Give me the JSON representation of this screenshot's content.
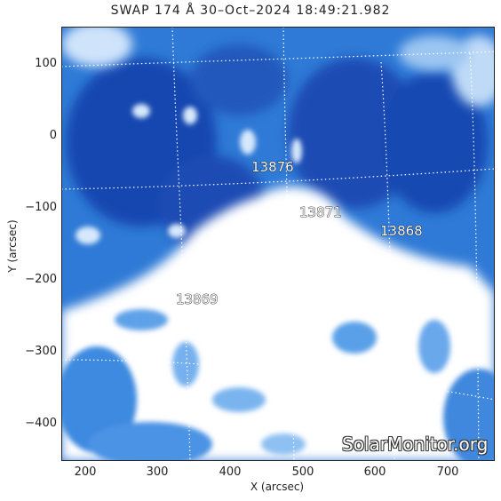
{
  "title": "SWAP 174 Å 30–Oct–2024 18:49:21.982",
  "xlabel": "X (arcsec)",
  "ylabel": "Y (arcsec)",
  "watermark": "SolarMonitor.org",
  "xticks": [
    "200",
    "300",
    "400",
    "500",
    "600",
    "700"
  ],
  "yticks": [
    "100",
    "0",
    "−100",
    "−200",
    "−300",
    "−400"
  ],
  "regions": [
    {
      "label": "13876"
    },
    {
      "label": "13871"
    },
    {
      "label": "13868"
    },
    {
      "label": "13869"
    }
  ],
  "colors": {
    "dark_blue": "#0b3fa8",
    "mid_blue": "#2e7bd6",
    "light_blue": "#8cc0f2",
    "white": "#ffffff"
  }
}
